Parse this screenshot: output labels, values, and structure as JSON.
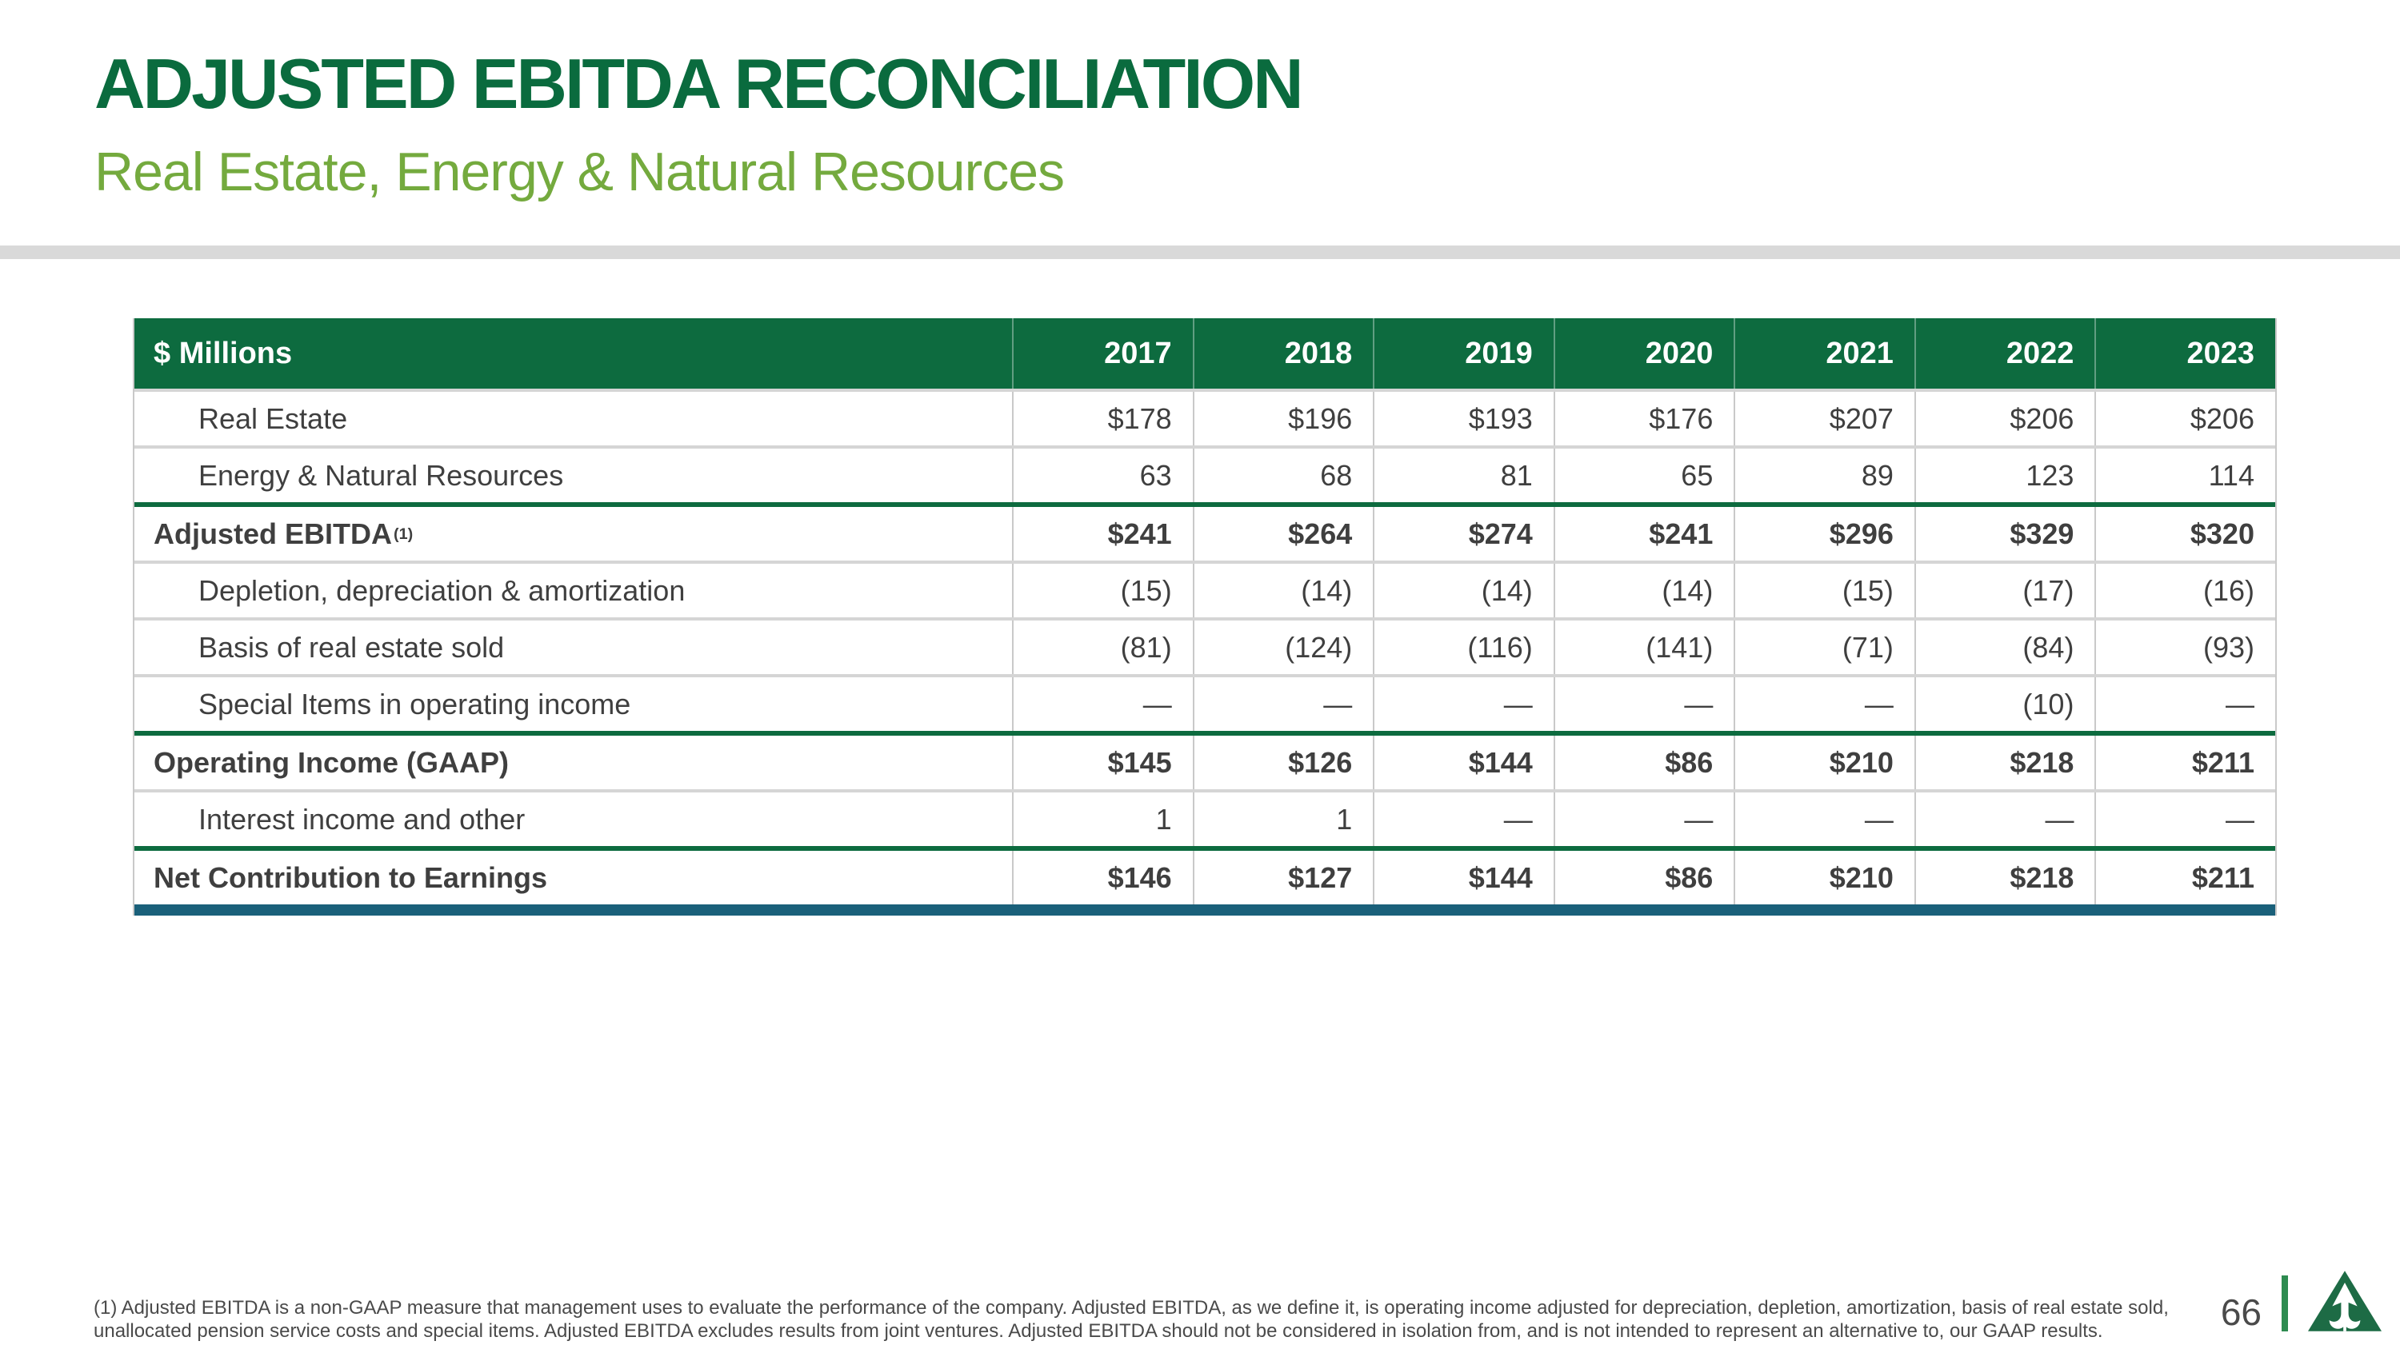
{
  "header": {
    "title": "ADJUSTED EBITDA RECONCILIATION",
    "subtitle": "Real Estate, Energy & Natural Resources"
  },
  "table": {
    "unit_label": "$ Millions",
    "years": [
      "2017",
      "2018",
      "2019",
      "2020",
      "2021",
      "2022",
      "2023"
    ],
    "rows": [
      {
        "label": "Real Estate",
        "indent": true,
        "bold": false,
        "values": [
          "$178",
          "$196",
          "$193",
          "$176",
          "$207",
          "$206",
          "$206"
        ]
      },
      {
        "label": "Energy & Natural Resources",
        "indent": true,
        "bold": false,
        "values": [
          "63",
          "68",
          "81",
          "65",
          "89",
          "123",
          "114"
        ]
      },
      {
        "label": "Adjusted EBITDA",
        "sup": "(1)",
        "indent": false,
        "bold": true,
        "top_rule": "green",
        "values": [
          "$241",
          "$264",
          "$274",
          "$241",
          "$296",
          "$329",
          "$320"
        ]
      },
      {
        "label": "Depletion, depreciation & amortization",
        "indent": true,
        "bold": false,
        "values": [
          "(15)",
          "(14)",
          "(14)",
          "(14)",
          "(15)",
          "(17)",
          "(16)"
        ]
      },
      {
        "label": "Basis of real estate sold",
        "indent": true,
        "bold": false,
        "values": [
          "(81)",
          "(124)",
          "(116)",
          "(141)",
          "(71)",
          "(84)",
          "(93)"
        ]
      },
      {
        "label": "Special Items in operating income",
        "indent": true,
        "bold": false,
        "values": [
          "—",
          "—",
          "—",
          "—",
          "—",
          "(10)",
          "—"
        ]
      },
      {
        "label": "Operating Income (GAAP)",
        "indent": false,
        "bold": true,
        "top_rule": "green",
        "values": [
          "$145",
          "$126",
          "$144",
          "$86",
          "$210",
          "$218",
          "$211"
        ]
      },
      {
        "label": "Interest income and other",
        "indent": true,
        "bold": false,
        "values": [
          "1",
          "1",
          "—",
          "—",
          "—",
          "—",
          "—"
        ]
      },
      {
        "label": "Net Contribution to Earnings",
        "indent": false,
        "bold": true,
        "top_rule": "green",
        "values": [
          "$146",
          "$127",
          "$144",
          "$86",
          "$210",
          "$218",
          "$211"
        ]
      }
    ]
  },
  "footnote": "(1) Adjusted EBITDA is a non-GAAP measure that management uses to evaluate the performance of the company. Adjusted EBITDA, as we define it, is operating income adjusted for depreciation, depletion, amortization, basis of real estate sold, unallocated pension service costs and special items. Adjusted EBITDA excludes results from joint ventures. Adjusted EBITDA should not be considered in isolation from, and is not intended to represent an alternative to, our GAAP results.",
  "footer": {
    "page_number": "66",
    "logo": "weyerhaeuser-triangle-tree-logo"
  },
  "colors": {
    "brand_green_dark": "#0d6b3f",
    "accent_green_light": "#74aa3e",
    "logo_green": "#1d6b45",
    "footer_bar_green": "#2e8b50",
    "table_bottom_teal": "#1a607a",
    "divider_gray": "#d9d9d9",
    "body_text_gray": "#3f3f3f"
  }
}
